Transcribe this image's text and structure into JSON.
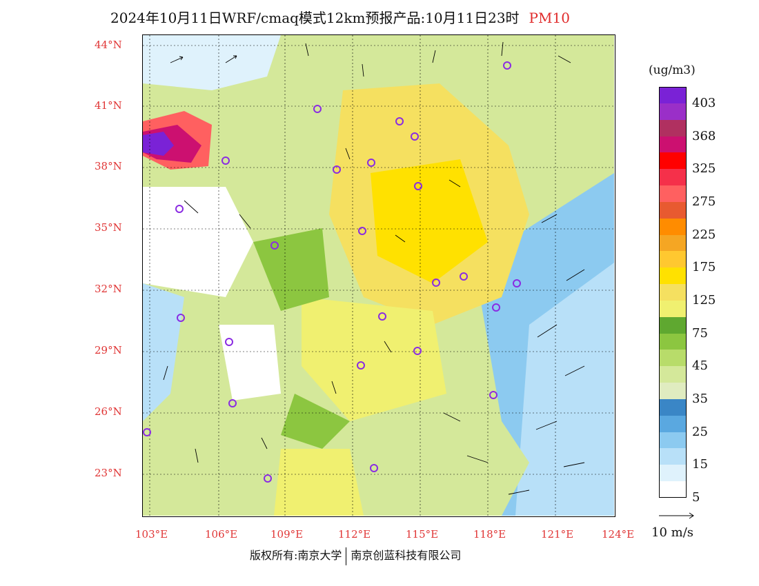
{
  "title": {
    "main": "2024年10月11日WRF/cmaq模式12km预报产品:10月11日23时",
    "pollutant": "PM10"
  },
  "axes": {
    "lat_labels": [
      "44°N",
      "41°N",
      "38°N",
      "35°N",
      "32°N",
      "29°N",
      "26°N",
      "23°N"
    ],
    "lon_labels": [
      "103°E",
      "106°E",
      "109°E",
      "112°E",
      "115°E",
      "118°E",
      "121°E",
      "124°E"
    ]
  },
  "legend": {
    "unit": "(ug/m3)",
    "labels": [
      "403",
      "368",
      "325",
      "275",
      "225",
      "175",
      "125",
      "75",
      "45",
      "35",
      "25",
      "15",
      "5"
    ],
    "colors": [
      "#7a22d6",
      "#9a2fc8",
      "#b03060",
      "#cc1070",
      "#ff0000",
      "#f5304a",
      "#ff6060",
      "#e85a30",
      "#ff8c00",
      "#f5a623",
      "#ffc830",
      "#ffe100",
      "#f5e060",
      "#f0f070",
      "#5fa830",
      "#8cc640",
      "#b8dc6a",
      "#d4e89a",
      "#e0ecc0",
      "#3a86c6",
      "#5aa8e0",
      "#8ccaf0",
      "#b8e0f8",
      "#dff2fc",
      "#ffffff"
    ]
  },
  "wind_scale": {
    "label": "10 m/s"
  },
  "footer": {
    "left": "版权所有:南京大学",
    "right": "南京创蓝科技有限公司"
  },
  "colors": {
    "axis_label": "#e03535",
    "pollutant_label": "#e02a2a",
    "site_marker": "#8a2be2"
  }
}
